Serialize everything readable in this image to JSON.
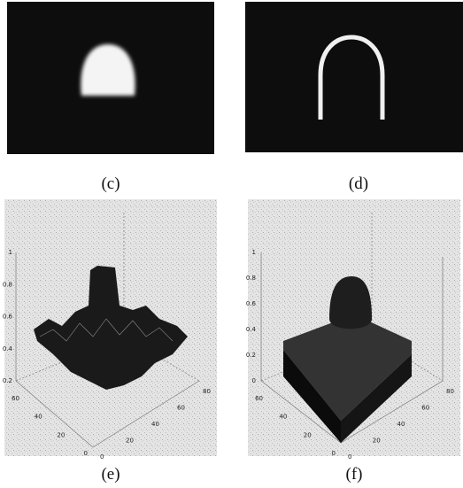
{
  "panels": [
    {
      "caption": "(c)"
    },
    {
      "caption": "(d)"
    },
    {
      "caption": "(e)",
      "z_ticks": [
        "1",
        "0.8",
        "0.6",
        "0.4",
        "0.2"
      ],
      "y_ticks": [
        "60",
        "40",
        "20",
        "0"
      ],
      "x_ticks": [
        "0",
        "20",
        "40",
        "60",
        "80"
      ]
    },
    {
      "caption": "(f)",
      "z_ticks": [
        "1",
        "0.8",
        "0.6",
        "0.4",
        "0.2",
        "0"
      ],
      "y_ticks": [
        "60",
        "40",
        "20",
        "0"
      ],
      "x_ticks": [
        "0",
        "20",
        "40",
        "60",
        "80"
      ]
    }
  ]
}
